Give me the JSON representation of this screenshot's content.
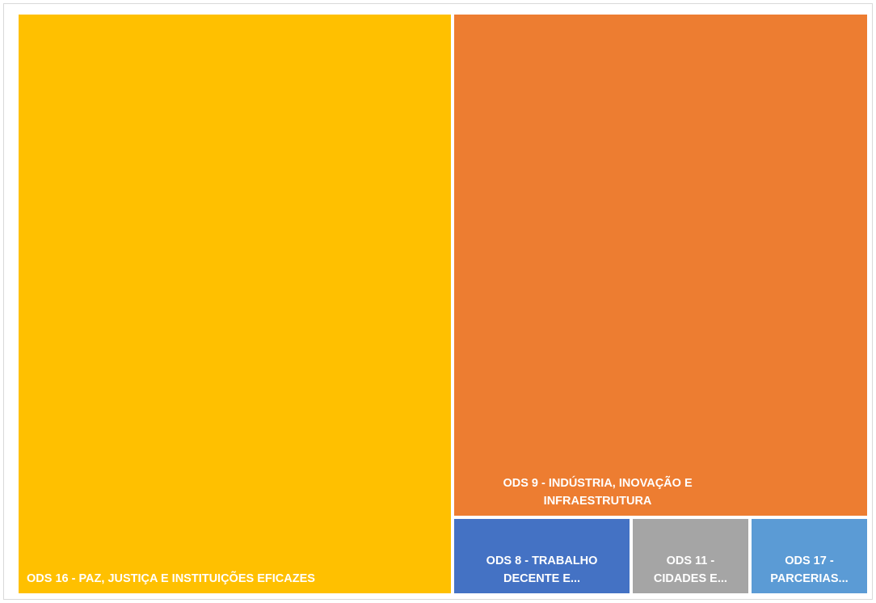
{
  "chart_data": {
    "type": "treemap",
    "categories": [
      "ODS 16 - PAZ, JUSTIÇA E INSTITUIÇÕES EFICAZES",
      "ODS 9 - INDÚSTRIA, INOVAÇÃO E INFRAESTRUTURA",
      "ODS 8 - TRABALHO DECENTE E...",
      "ODS 11 - CIDADES E...",
      "ODS 17 - PARCERIAS..."
    ],
    "values": [
      110,
      91,
      6,
      4,
      4
    ],
    "colors": [
      "#ffc000",
      "#ed7d31",
      "#4472c4",
      "#a5a5a5",
      "#5b9bd5"
    ]
  }
}
